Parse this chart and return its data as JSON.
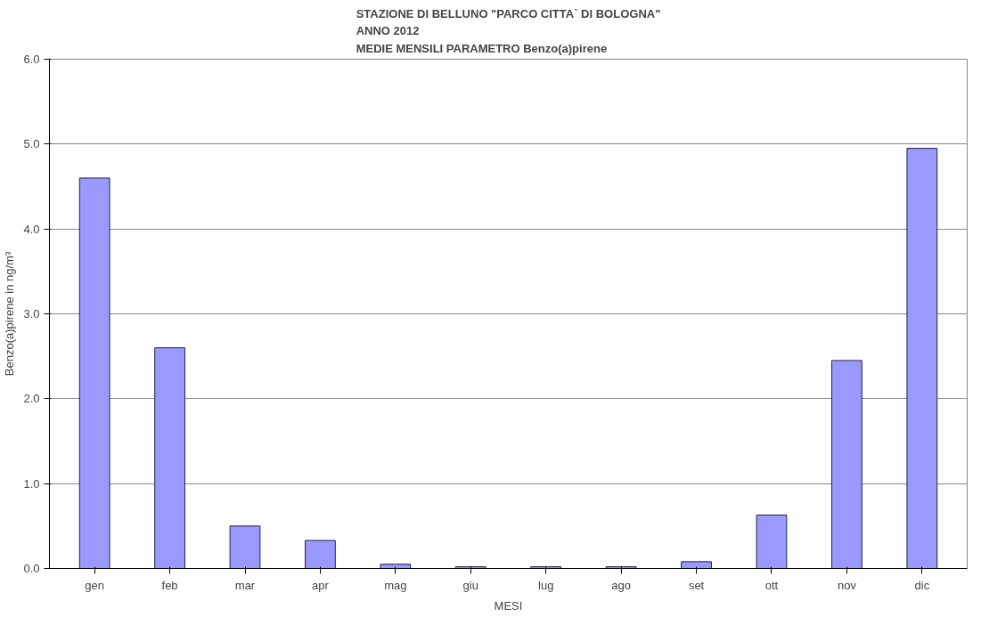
{
  "chart_data": {
    "type": "bar",
    "title": "STAZIONE DI BELLUNO \"PARCO CITTA` DI BOLOGNA\"\nANNO 2012\nMEDIE MENSILI PARAMETRO Benzo(a)pirene",
    "xlabel": "MESI",
    "ylabel": "Benzo(a)pirene in ng/m³",
    "categories": [
      "gen",
      "feb",
      "mar",
      "apr",
      "mag",
      "giu",
      "lug",
      "ago",
      "set",
      "ott",
      "nov",
      "dic"
    ],
    "values": [
      4.6,
      2.6,
      0.5,
      0.33,
      0.05,
      0.02,
      0.02,
      0.02,
      0.08,
      0.63,
      2.45,
      4.95
    ],
    "color": "#9999ff",
    "ylim": [
      0,
      6
    ],
    "yticks": [
      {
        "value": 0,
        "label": "0.0"
      },
      {
        "value": 1,
        "label": "1.0"
      },
      {
        "value": 2,
        "label": "2.0"
      },
      {
        "value": 3,
        "label": "3.0"
      },
      {
        "value": 4,
        "label": "4.0"
      },
      {
        "value": 5,
        "label": "5.0"
      },
      {
        "value": 6,
        "label": "6.0"
      }
    ],
    "grid": "y"
  }
}
